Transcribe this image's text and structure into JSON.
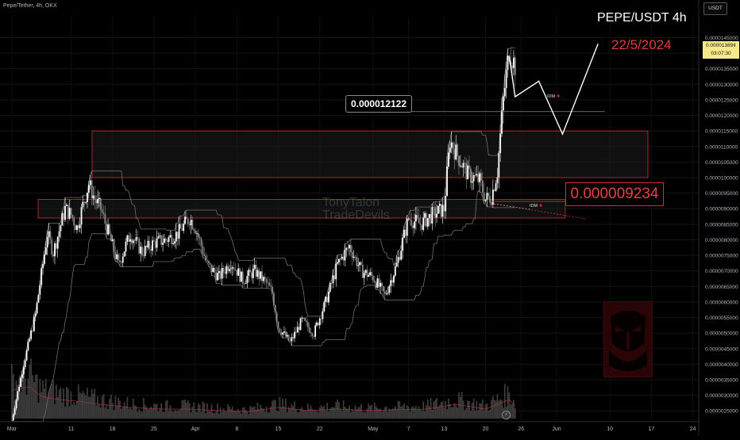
{
  "symbol_line": "Pepe/Tether, 4h, OKX",
  "currency": "USDT",
  "annotation_title": "PEPE/USDT 4h",
  "annotation_date": "22/5/2024",
  "last_price": {
    "price": "0.00001389¢",
    "countdown": "03:07:30"
  },
  "levels": {
    "upper_label": "0.000012122",
    "upper_value": 1.2122e-05,
    "lower_label": "0.000009234",
    "lower_value": 9.234e-06,
    "upper_idm": "IDM",
    "lower_idm": "IDM"
  },
  "watermark": [
    "TonyTalon",
    "TradeDevils"
  ],
  "zones": [
    {
      "name": "supply-zone",
      "top": 1.15e-05,
      "bottom": 1e-05
    },
    {
      "name": "demand-zone",
      "top": 9.3e-06,
      "bottom": 8.7e-06
    }
  ],
  "colors": {
    "up_candle": "#ffffff",
    "down_candle": "#8a8a8a",
    "zone_border": "#c93232",
    "zone_fill": "#1e1e1e",
    "label_red": "#e84040",
    "price_tag": "#f6e98b",
    "volume": "#3a3a3a"
  },
  "icons": [
    "lightning-icon",
    "diamond-icon",
    "mask-logo-icon"
  ],
  "chart_data": {
    "type": "candlestick",
    "ylim": [
      2.2e-06,
      1.52e-05
    ],
    "y_ticks": [
      "0.0000145000",
      "0.0000140000",
      "0.0000135000",
      "0.0000130000",
      "0.0000125000",
      "0.0000120000",
      "0.0000115000",
      "0.0000110000",
      "0.0000105000",
      "0.0000100000",
      "0.0000095000",
      "0.0000090000",
      "0.0000085000",
      "0.0000080000",
      "0.0000075000",
      "0.0000070000",
      "0.0000065000",
      "0.0000060000",
      "0.0000055000",
      "0.0000050000",
      "0.0000045000",
      "0.0000040000",
      "0.0000035000",
      "0.0000030000",
      "0.0000025000"
    ],
    "y_tick_values": [
      1.45e-05,
      1.4e-05,
      1.35e-05,
      1.3e-05,
      1.25e-05,
      1.2e-05,
      1.15e-05,
      1.1e-05,
      1.05e-05,
      1e-05,
      9.5e-06,
      9e-06,
      8.5e-06,
      8e-06,
      7.5e-06,
      7e-06,
      6.5e-06,
      6e-06,
      5.5e-06,
      5e-06,
      4.5e-06,
      4e-06,
      3.5e-06,
      3e-06,
      2.5e-06
    ],
    "x_ticks": [
      "Mar",
      "11",
      "18",
      "25",
      "Apr",
      "8",
      "15",
      "22",
      "May",
      "7",
      "13",
      "20",
      "26",
      "Jun",
      "10",
      "17",
      "24"
    ],
    "x_tick_days": [
      0,
      10,
      17,
      24,
      31,
      38,
      45,
      52,
      61,
      67,
      73,
      80,
      86,
      92,
      101,
      108,
      115
    ],
    "x_range_days": [
      -2,
      116
    ],
    "price_path": [
      [
        0,
        2.2e-06
      ],
      [
        2,
        4e-06
      ],
      [
        4,
        5.6e-06
      ],
      [
        6,
        8.2e-06
      ],
      [
        7,
        7.6e-06
      ],
      [
        9,
        9e-06
      ],
      [
        10,
        8.8e-06
      ],
      [
        11,
        8.4e-06
      ],
      [
        13,
        9.8e-06
      ],
      [
        14,
        9.3e-06
      ],
      [
        15,
        9e-06
      ],
      [
        17,
        7.8e-06
      ],
      [
        18,
        7.2e-06
      ],
      [
        20,
        8.2e-06
      ],
      [
        22,
        7.6e-06
      ],
      [
        24,
        7.9e-06
      ],
      [
        26,
        8e-06
      ],
      [
        28,
        8.2e-06
      ],
      [
        30,
        8.7e-06
      ],
      [
        31,
        8.4e-06
      ],
      [
        33,
        7.2e-06
      ],
      [
        35,
        6.8e-06
      ],
      [
        37,
        7.3e-06
      ],
      [
        39,
        6.7e-06
      ],
      [
        41,
        7e-06
      ],
      [
        43,
        6.6e-06
      ],
      [
        44,
        6.3e-06
      ],
      [
        45,
        5.2e-06
      ],
      [
        47,
        4.7e-06
      ],
      [
        49,
        5.4e-06
      ],
      [
        51,
        5e-06
      ],
      [
        53,
        6e-06
      ],
      [
        55,
        7.2e-06
      ],
      [
        57,
        7.8e-06
      ],
      [
        59,
        7e-06
      ],
      [
        61,
        6.8e-06
      ],
      [
        63,
        6.2e-06
      ],
      [
        65,
        7.2e-06
      ],
      [
        67,
        8.7e-06
      ],
      [
        69,
        8.5e-06
      ],
      [
        71,
        8.8e-06
      ],
      [
        73,
        9e-06
      ],
      [
        74,
        1.12e-05
      ],
      [
        75,
        1.08e-05
      ],
      [
        77,
        1.01e-05
      ],
      [
        79,
        9.9e-06
      ],
      [
        80,
        9.3e-06
      ],
      [
        81,
        9.4e-06
      ],
      [
        82,
        1.02e-05
      ],
      [
        83,
        1.25e-05
      ],
      [
        84,
        1.41e-05
      ],
      [
        85,
        1.36e-05
      ]
    ],
    "projection": [
      [
        84,
        1.39e-05
      ],
      [
        85,
        1.26e-05
      ],
      [
        89,
        1.31e-05
      ],
      [
        93,
        1.14e-05
      ],
      [
        99,
        1.43e-05
      ]
    ],
    "volume_path": [
      [
        0,
        0.9
      ],
      [
        3,
        1.0
      ],
      [
        5,
        0.7
      ],
      [
        8,
        0.6
      ],
      [
        11,
        0.55
      ],
      [
        15,
        0.45
      ],
      [
        20,
        0.35
      ],
      [
        25,
        0.3
      ],
      [
        30,
        0.3
      ],
      [
        35,
        0.25
      ],
      [
        40,
        0.22
      ],
      [
        45,
        0.35
      ],
      [
        50,
        0.25
      ],
      [
        55,
        0.3
      ],
      [
        60,
        0.25
      ],
      [
        65,
        0.28
      ],
      [
        70,
        0.3
      ],
      [
        75,
        0.45
      ],
      [
        80,
        0.3
      ],
      [
        84,
        0.6
      ],
      [
        85,
        0.4
      ]
    ]
  }
}
